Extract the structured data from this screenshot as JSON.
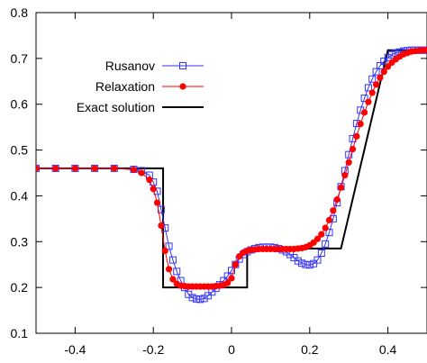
{
  "chart_data": {
    "type": "line",
    "title": "",
    "xlabel": "",
    "ylabel": "",
    "xlim": [
      -0.5,
      0.5
    ],
    "ylim": [
      0.1,
      0.8
    ],
    "xticks": [
      -0.4,
      -0.2,
      0,
      0.2,
      0.4
    ],
    "xtick_labels": [
      "-0.4",
      "-0.2",
      "0",
      "0.2",
      "0.4"
    ],
    "yticks": [
      0.1,
      0.2,
      0.3,
      0.4,
      0.5,
      0.6,
      0.7,
      0.8
    ],
    "ytick_labels": [
      "0.1",
      "0.2",
      "0.3",
      "0.4",
      "0.5",
      "0.6",
      "0.7",
      "0.8"
    ],
    "grid": false,
    "legend_position": "top-left",
    "series": [
      {
        "name": "Rusanov",
        "color": "#3333ff",
        "marker": "open-square",
        "x": [
          -0.5,
          -0.45,
          -0.4,
          -0.35,
          -0.3,
          -0.25,
          -0.23,
          -0.21,
          -0.2,
          -0.19,
          -0.18,
          -0.17,
          -0.16,
          -0.15,
          -0.14,
          -0.13,
          -0.12,
          -0.11,
          -0.1,
          -0.09,
          -0.08,
          -0.07,
          -0.06,
          -0.05,
          -0.04,
          -0.03,
          -0.02,
          -0.01,
          0.0,
          0.01,
          0.02,
          0.03,
          0.04,
          0.05,
          0.06,
          0.07,
          0.08,
          0.09,
          0.1,
          0.11,
          0.12,
          0.13,
          0.14,
          0.15,
          0.16,
          0.17,
          0.18,
          0.19,
          0.2,
          0.21,
          0.22,
          0.23,
          0.24,
          0.25,
          0.26,
          0.27,
          0.28,
          0.29,
          0.3,
          0.31,
          0.32,
          0.33,
          0.34,
          0.35,
          0.36,
          0.37,
          0.38,
          0.39,
          0.4,
          0.41,
          0.42,
          0.43,
          0.44,
          0.45,
          0.46,
          0.47,
          0.48,
          0.49,
          0.5
        ],
        "y": [
          0.46,
          0.46,
          0.46,
          0.46,
          0.46,
          0.458,
          0.455,
          0.445,
          0.43,
          0.41,
          0.37,
          0.33,
          0.29,
          0.26,
          0.235,
          0.215,
          0.2,
          0.185,
          0.178,
          0.175,
          0.174,
          0.176,
          0.182,
          0.19,
          0.198,
          0.206,
          0.215,
          0.225,
          0.237,
          0.25,
          0.262,
          0.272,
          0.278,
          0.282,
          0.285,
          0.287,
          0.288,
          0.288,
          0.288,
          0.287,
          0.285,
          0.282,
          0.278,
          0.272,
          0.265,
          0.258,
          0.253,
          0.25,
          0.249,
          0.252,
          0.26,
          0.275,
          0.295,
          0.32,
          0.35,
          0.385,
          0.42,
          0.455,
          0.49,
          0.525,
          0.558,
          0.587,
          0.613,
          0.636,
          0.655,
          0.671,
          0.684,
          0.694,
          0.702,
          0.708,
          0.712,
          0.714,
          0.716,
          0.717,
          0.718,
          0.718,
          0.718,
          0.718,
          0.718
        ]
      },
      {
        "name": "Relaxation",
        "color": "#ff0000",
        "marker": "filled-circle",
        "x": [
          -0.5,
          -0.45,
          -0.4,
          -0.35,
          -0.3,
          -0.25,
          -0.23,
          -0.21,
          -0.2,
          -0.19,
          -0.18,
          -0.17,
          -0.16,
          -0.15,
          -0.14,
          -0.13,
          -0.12,
          -0.11,
          -0.1,
          -0.09,
          -0.08,
          -0.07,
          -0.06,
          -0.05,
          -0.04,
          -0.03,
          -0.02,
          -0.01,
          0.0,
          0.01,
          0.02,
          0.03,
          0.04,
          0.05,
          0.06,
          0.07,
          0.08,
          0.09,
          0.1,
          0.11,
          0.12,
          0.13,
          0.14,
          0.15,
          0.16,
          0.17,
          0.18,
          0.19,
          0.2,
          0.21,
          0.22,
          0.23,
          0.24,
          0.25,
          0.26,
          0.27,
          0.28,
          0.29,
          0.3,
          0.31,
          0.32,
          0.33,
          0.34,
          0.35,
          0.36,
          0.37,
          0.38,
          0.39,
          0.4,
          0.41,
          0.42,
          0.43,
          0.44,
          0.45,
          0.46,
          0.47,
          0.48,
          0.49,
          0.5
        ],
        "y": [
          0.46,
          0.46,
          0.46,
          0.46,
          0.46,
          0.457,
          0.45,
          0.435,
          0.415,
          0.385,
          0.335,
          0.28,
          0.24,
          0.218,
          0.208,
          0.204,
          0.203,
          0.202,
          0.202,
          0.202,
          0.202,
          0.202,
          0.202,
          0.202,
          0.203,
          0.204,
          0.206,
          0.21,
          0.22,
          0.25,
          0.268,
          0.276,
          0.28,
          0.282,
          0.283,
          0.284,
          0.284,
          0.284,
          0.284,
          0.284,
          0.284,
          0.284,
          0.284,
          0.284,
          0.284,
          0.285,
          0.286,
          0.288,
          0.292,
          0.298,
          0.306,
          0.316,
          0.33,
          0.347,
          0.368,
          0.392,
          0.418,
          0.445,
          0.473,
          0.502,
          0.53,
          0.557,
          0.582,
          0.605,
          0.625,
          0.643,
          0.658,
          0.671,
          0.682,
          0.691,
          0.698,
          0.704,
          0.709,
          0.712,
          0.715,
          0.716,
          0.717,
          0.718,
          0.718
        ]
      },
      {
        "name": "Exact solution",
        "color": "#000000",
        "marker": "none",
        "x": [
          -0.5,
          -0.175,
          -0.175,
          0.04,
          0.04,
          0.28,
          0.4,
          0.5
        ],
        "y": [
          0.46,
          0.46,
          0.2,
          0.2,
          0.285,
          0.285,
          0.718,
          0.718
        ]
      }
    ]
  }
}
